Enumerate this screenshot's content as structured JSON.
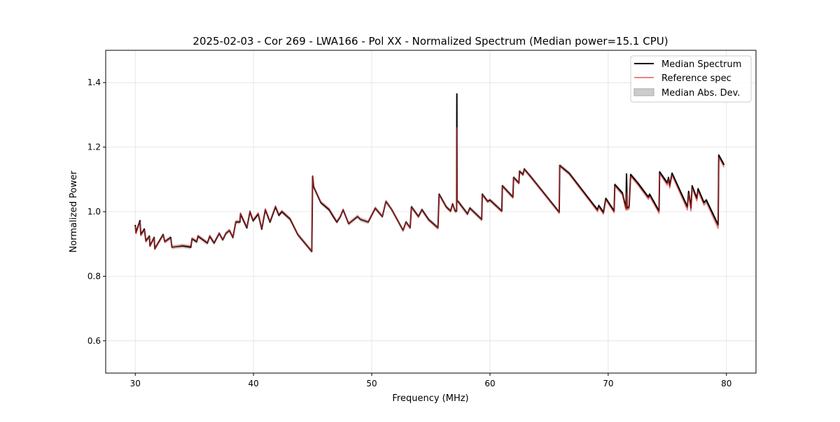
{
  "chart_data": {
    "type": "line",
    "title": "2025-02-03 - Cor 269 - LWA166 - Pol XX - Normalized Spectrum (Median power=15.1 CPU)",
    "xlabel": "Frequency (MHz)",
    "ylabel": "Normalized Power",
    "xlim": [
      27.5,
      82.5
    ],
    "ylim": [
      0.5,
      1.5
    ],
    "xticks": [
      30,
      40,
      50,
      60,
      70,
      80
    ],
    "xtick_labels": [
      "30",
      "40",
      "50",
      "60",
      "70",
      "80"
    ],
    "yticks": [
      0.6,
      0.8,
      1.0,
      1.2,
      1.4
    ],
    "ytick_labels": [
      "0.6",
      "0.8",
      "1.0",
      "1.2",
      "1.4"
    ],
    "grid": true,
    "legend_position": "top-right",
    "legend": [
      "Median Spectrum",
      "Reference spec",
      "Median Abs. Dev."
    ],
    "colors": {
      "median": "#000000",
      "reference": "#e03030",
      "mad": "#bbbbbb"
    },
    "mad": 0.007,
    "x": [
      30.0,
      30.06,
      30.4,
      30.47,
      30.77,
      30.9,
      31.2,
      31.24,
      31.6,
      31.65,
      32.36,
      32.5,
      33.0,
      33.1,
      34.0,
      34.7,
      34.8,
      35.2,
      35.3,
      36.1,
      36.3,
      36.67,
      37.1,
      37.4,
      37.67,
      37.97,
      38.26,
      38.5,
      38.85,
      38.9,
      39.44,
      39.7,
      39.97,
      40.4,
      40.7,
      41.0,
      41.4,
      41.86,
      42.15,
      42.4,
      43.1,
      43.75,
      44.93,
      45.0,
      45.1,
      45.7,
      46.4,
      46.75,
      47.05,
      47.35,
      47.58,
      48.05,
      48.8,
      49.05,
      49.7,
      50.3,
      50.9,
      51.2,
      51.7,
      52.65,
      52.9,
      53.25,
      53.36,
      53.95,
      54.25,
      54.8,
      55.6,
      55.7,
      56.3,
      56.67,
      56.84,
      57.05,
      57.18,
      57.2,
      57.22,
      57.3,
      58.1,
      58.3,
      59.3,
      59.35,
      59.8,
      60.0,
      61.0,
      61.05,
      61.94,
      62.0,
      62.45,
      62.5,
      62.8,
      62.9,
      63.5,
      65.86,
      65.9,
      66.7,
      68.7,
      69.1,
      69.2,
      69.6,
      69.8,
      70.5,
      70.56,
      71.2,
      71.5,
      71.55,
      71.6,
      71.77,
      71.9,
      72.5,
      73.4,
      73.5,
      74.3,
      74.35,
      75.0,
      75.1,
      75.2,
      75.4,
      76.7,
      76.8,
      77.0,
      77.1,
      77.5,
      77.6,
      78.1,
      78.3,
      79.3,
      79.35,
      79.8
    ],
    "series": [
      {
        "name": "Median Spectrum",
        "values": [
          0.959,
          0.935,
          0.972,
          0.929,
          0.946,
          0.909,
          0.924,
          0.894,
          0.92,
          0.885,
          0.929,
          0.907,
          0.92,
          0.89,
          0.894,
          0.89,
          0.916,
          0.907,
          0.924,
          0.903,
          0.924,
          0.903,
          0.933,
          0.913,
          0.933,
          0.942,
          0.92,
          0.968,
          0.968,
          0.993,
          0.95,
          1.0,
          0.972,
          0.993,
          0.946,
          1.006,
          0.968,
          1.015,
          0.989,
          1.0,
          0.977,
          0.929,
          0.877,
          1.11,
          1.076,
          1.028,
          1.006,
          0.985,
          0.968,
          0.985,
          1.006,
          0.963,
          0.985,
          0.976,
          0.968,
          1.011,
          0.985,
          1.032,
          1.006,
          0.942,
          0.968,
          0.95,
          1.015,
          0.985,
          1.006,
          0.976,
          0.95,
          1.054,
          1.015,
          1.002,
          1.024,
          1.002,
          1.002,
          1.365,
          1.032,
          1.032,
          0.993,
          1.011,
          0.976,
          1.054,
          1.032,
          1.036,
          1.002,
          1.08,
          1.045,
          1.106,
          1.089,
          1.125,
          1.115,
          1.132,
          1.106,
          0.998,
          1.143,
          1.119,
          1.024,
          1.006,
          1.019,
          0.998,
          1.041,
          1.002,
          1.084,
          1.058,
          1.011,
          1.117,
          1.011,
          1.015,
          1.115,
          1.089,
          1.045,
          1.054,
          1.002,
          1.123,
          1.089,
          1.106,
          1.08,
          1.119,
          1.015,
          1.063,
          1.011,
          1.08,
          1.041,
          1.071,
          1.028,
          1.036,
          0.959,
          1.175,
          1.145
        ]
      },
      {
        "name": "Reference spec",
        "values": [
          0.955,
          0.932,
          0.968,
          0.926,
          0.943,
          0.907,
          0.922,
          0.893,
          0.918,
          0.884,
          0.927,
          0.906,
          0.918,
          0.889,
          0.896,
          0.893,
          0.918,
          0.909,
          0.926,
          0.905,
          0.926,
          0.905,
          0.934,
          0.914,
          0.934,
          0.943,
          0.921,
          0.97,
          0.97,
          0.996,
          0.953,
          1.003,
          0.975,
          0.996,
          0.949,
          1.009,
          0.971,
          1.018,
          0.992,
          1.003,
          0.979,
          0.93,
          0.878,
          1.11,
          1.078,
          1.03,
          1.009,
          0.988,
          0.97,
          0.986,
          1.007,
          0.964,
          0.986,
          0.977,
          0.969,
          1.012,
          0.986,
          1.033,
          1.006,
          0.941,
          0.967,
          0.949,
          1.013,
          0.983,
          1.004,
          0.974,
          0.948,
          1.052,
          1.013,
          1.0,
          1.022,
          1.0,
          1.0,
          1.26,
          1.03,
          1.03,
          0.991,
          1.009,
          0.974,
          1.052,
          1.03,
          1.034,
          1.0,
          1.078,
          1.043,
          1.104,
          1.087,
          1.123,
          1.113,
          1.13,
          1.104,
          0.996,
          1.141,
          1.116,
          1.02,
          1.0,
          1.014,
          0.992,
          1.036,
          0.997,
          1.079,
          1.052,
          1.005,
          1.058,
          1.005,
          1.009,
          1.109,
          1.083,
          1.038,
          1.047,
          0.995,
          1.117,
          1.082,
          1.099,
          1.073,
          1.112,
          1.005,
          1.055,
          1.002,
          1.072,
          1.033,
          1.063,
          1.02,
          1.028,
          0.948,
          1.168,
          1.138
        ]
      }
    ]
  }
}
